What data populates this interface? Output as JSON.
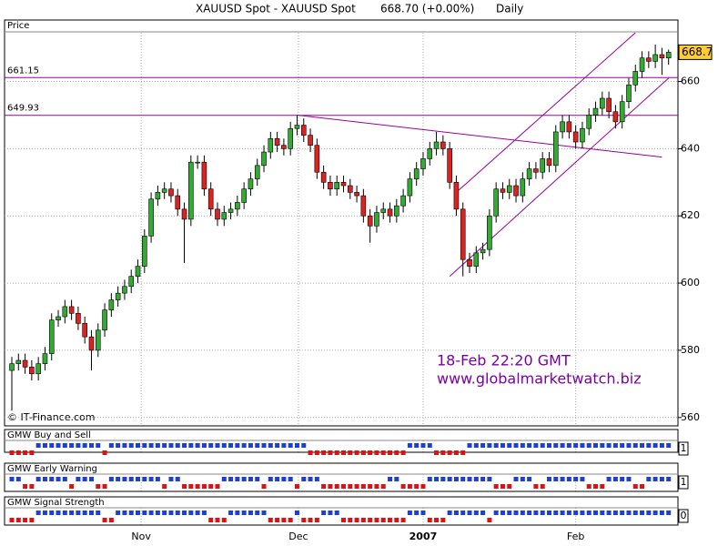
{
  "chart_data": {
    "type": "candlestick",
    "title": "XAUUSD Spot - XAUUSD Spot",
    "last_quote": "668.70 (+0.00%)",
    "period": "Daily",
    "y_label": "Price",
    "credit": "© IT-Finance.com",
    "annotations": [
      "18-Feb 22:20 GMT",
      "www.globalmarketwatch.biz"
    ],
    "last_value": 668.7,
    "last_value_label": "668.7",
    "ylim": [
      557.5,
      674.5
    ],
    "yticks": [
      560,
      580,
      600,
      620,
      640,
      660
    ],
    "xticks": [
      {
        "value": 19.5,
        "label": "Nov"
      },
      {
        "value": 43.2,
        "label": "Dec"
      },
      {
        "value": 62,
        "label": "2007"
      },
      {
        "value": 85,
        "label": "Feb"
      }
    ],
    "up_color": "#33aa33",
    "down_color": "#dd2222",
    "line_color": "#990099",
    "open": [
      574,
      576,
      577,
      575,
      573,
      576,
      579,
      589,
      590,
      593,
      591,
      588,
      584,
      580,
      586,
      592,
      595,
      597,
      599,
      602,
      605,
      614,
      625,
      627,
      628,
      626,
      622,
      619,
      636,
      636,
      628,
      622,
      619,
      621,
      622,
      624,
      628,
      631,
      635,
      639,
      643,
      641,
      640,
      646,
      647,
      644,
      641,
      633,
      630,
      628,
      630,
      629,
      627,
      626,
      620,
      617,
      621,
      622,
      620,
      623,
      626,
      631,
      634,
      637,
      640,
      642,
      640,
      630,
      622,
      607,
      605,
      609,
      610,
      620,
      628,
      627,
      629,
      626,
      631,
      634,
      633,
      637,
      635,
      645,
      648,
      645,
      642,
      646,
      650,
      652,
      655,
      651,
      648,
      654,
      659,
      663,
      667,
      666,
      668,
      667
    ],
    "high": [
      578,
      579,
      579,
      577,
      578,
      581,
      591,
      592,
      595,
      595,
      593,
      590,
      586,
      588,
      594,
      597,
      599,
      601,
      604,
      607,
      616,
      627,
      629,
      630,
      630,
      628,
      624,
      638,
      638,
      638,
      630,
      624,
      623,
      624,
      626,
      630,
      633,
      637,
      641,
      645,
      645,
      643,
      648,
      650,
      649,
      646,
      643,
      635,
      632,
      632,
      632,
      631,
      629,
      628,
      622,
      623,
      624,
      624,
      625,
      628,
      633,
      636,
      639,
      642,
      645,
      644,
      642,
      632,
      624,
      609,
      611,
      612,
      622,
      630,
      630,
      631,
      631,
      633,
      636,
      636,
      639,
      639,
      647,
      650,
      650,
      647,
      648,
      652,
      654,
      657,
      657,
      653,
      656,
      661,
      665,
      669,
      669,
      671,
      670,
      669.5
    ],
    "low": [
      562,
      574,
      573,
      571,
      571,
      574,
      577,
      587,
      588,
      589,
      586,
      582,
      574,
      578,
      584,
      590,
      593,
      595,
      597,
      600,
      603,
      612,
      623,
      625,
      624,
      620,
      606,
      617,
      634,
      626,
      620,
      617,
      617,
      619,
      620,
      622,
      626,
      629,
      633,
      637,
      639,
      638,
      638,
      644,
      642,
      639,
      631,
      628,
      626,
      626,
      627,
      625,
      624,
      618,
      612,
      615,
      619,
      618,
      618,
      621,
      624,
      629,
      632,
      635,
      638,
      638,
      628,
      620,
      602,
      603,
      603,
      607,
      608,
      618,
      625,
      625,
      624,
      624,
      629,
      631,
      631,
      633,
      633,
      643,
      643,
      640,
      640,
      644,
      648,
      650,
      649,
      646,
      646,
      652,
      657,
      661,
      664,
      664,
      662,
      665
    ],
    "close": [
      576,
      577,
      575,
      573,
      576,
      579,
      589,
      590,
      593,
      591,
      588,
      584,
      580,
      586,
      592,
      595,
      597,
      599,
      602,
      605,
      614,
      625,
      627,
      628,
      626,
      622,
      619,
      636,
      636,
      628,
      622,
      619,
      621,
      622,
      624,
      628,
      631,
      635,
      639,
      643,
      641,
      640,
      646,
      647,
      644,
      641,
      633,
      630,
      628,
      630,
      629,
      627,
      626,
      620,
      617,
      621,
      622,
      620,
      623,
      626,
      631,
      634,
      637,
      640,
      642,
      640,
      630,
      622,
      607,
      605,
      609,
      610,
      620,
      628,
      627,
      629,
      626,
      631,
      634,
      633,
      637,
      635,
      645,
      648,
      645,
      642,
      646,
      650,
      652,
      655,
      651,
      648,
      654,
      659,
      663,
      667,
      666,
      668,
      667,
      668.7
    ],
    "levels": [
      {
        "value": 661.15,
        "label": "661.15"
      },
      {
        "value": 649.93,
        "label": "649.93"
      }
    ],
    "trendlines": [
      {
        "x": [
          43,
          98
        ],
        "values": [
          650,
          637.5
        ]
      },
      {
        "x": [
          67,
          94
        ],
        "values": [
          627,
          674.5
        ]
      },
      {
        "x": [
          66,
          99
        ],
        "values": [
          602,
          661
        ]
      }
    ],
    "indicators": [
      {
        "name": "GMW Buy and Sell",
        "value": 1,
        "signals": [
          -1,
          -1,
          -1,
          -1,
          1,
          1,
          1,
          1,
          1,
          1,
          1,
          1,
          1,
          1,
          -1,
          1,
          1,
          1,
          1,
          1,
          1,
          1,
          1,
          1,
          1,
          1,
          1,
          1,
          1,
          1,
          1,
          1,
          1,
          1,
          1,
          1,
          1,
          1,
          1,
          1,
          1,
          1,
          1,
          1,
          1,
          -1,
          -1,
          -1,
          -1,
          -1,
          -1,
          -1,
          -1,
          -1,
          -1,
          -1,
          -1,
          -1,
          -1,
          -1,
          1,
          1,
          1,
          1,
          -1,
          -1,
          -1,
          -1,
          -1,
          1,
          1,
          1,
          1,
          1,
          1,
          1,
          1,
          1,
          1,
          1,
          1,
          1,
          1,
          1,
          1,
          1,
          1,
          1,
          1,
          1,
          1,
          1,
          1,
          1,
          1,
          1,
          1,
          1,
          1,
          1
        ]
      },
      {
        "name": "GMW Early Warning",
        "value": 1,
        "signals": [
          1,
          1,
          -1,
          -1,
          1,
          1,
          1,
          1,
          1,
          -1,
          1,
          1,
          1,
          -1,
          -1,
          1,
          1,
          1,
          1,
          1,
          1,
          1,
          1,
          -1,
          1,
          1,
          -1,
          -1,
          -1,
          -1,
          -1,
          -1,
          1,
          1,
          1,
          1,
          1,
          1,
          -1,
          1,
          1,
          1,
          1,
          -1,
          1,
          1,
          1,
          -1,
          -1,
          -1,
          -1,
          -1,
          -1,
          -1,
          -1,
          -1,
          -1,
          1,
          1,
          -1,
          -1,
          -1,
          -1,
          1,
          1,
          1,
          1,
          1,
          1,
          1,
          1,
          1,
          1,
          -1,
          -1,
          -1,
          1,
          1,
          1,
          -1,
          -1,
          1,
          1,
          1,
          1,
          1,
          1,
          -1,
          -1,
          -1,
          1,
          1,
          1,
          1,
          -1,
          -1,
          1,
          1,
          1,
          1
        ]
      },
      {
        "name": "GMW Signal Strength",
        "value": 0,
        "signals": [
          -1,
          -1,
          -1,
          -1,
          1,
          1,
          1,
          1,
          1,
          1,
          1,
          1,
          1,
          1,
          -1,
          -1,
          1,
          1,
          1,
          1,
          1,
          1,
          1,
          1,
          1,
          1,
          1,
          1,
          1,
          1,
          -1,
          -1,
          -1,
          1,
          1,
          1,
          1,
          1,
          1,
          -1,
          -1,
          -1,
          -1,
          1,
          -1,
          -1,
          -1,
          1,
          1,
          1,
          -1,
          -1,
          -1,
          -1,
          -1,
          -1,
          -1,
          -1,
          -1,
          -1,
          1,
          1,
          1,
          -1,
          -1,
          -1,
          1,
          1,
          1,
          1,
          1,
          1,
          -1,
          1,
          1,
          1,
          1,
          1,
          1,
          1,
          1,
          1,
          1,
          1,
          1,
          1,
          1,
          1,
          1,
          1,
          1,
          1,
          1,
          1,
          1,
          1,
          1,
          1,
          1,
          1
        ]
      }
    ]
  }
}
